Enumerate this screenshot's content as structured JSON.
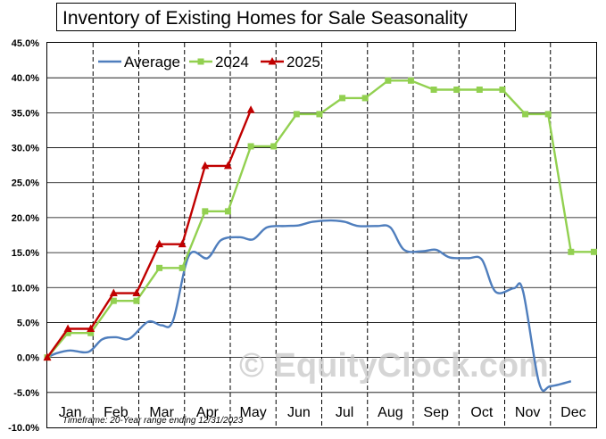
{
  "chart_data": {
    "type": "line",
    "title": "Inventory of Existing Homes for Sale Seasonality",
    "categories": [
      "Jan",
      "Feb",
      "Mar",
      "Apr",
      "May",
      "Jun",
      "Jul",
      "Aug",
      "Sep",
      "Oct",
      "Nov",
      "Dec"
    ],
    "y_ticks": [
      "45.0%",
      "40.0%",
      "35.0%",
      "30.0%",
      "25.0%",
      "20.0%",
      "15.0%",
      "10.0%",
      "5.0%",
      "0.0%",
      "-5.0%",
      "-10.0%"
    ],
    "ylim": [
      -10,
      45
    ],
    "grid": true,
    "legend": "top-left",
    "watermark": "© EquityClock.com",
    "footnote": "Timeframe: 20-Year range ending 12/31/2023",
    "series": [
      {
        "name": "Average",
        "color": "#4f7ebd",
        "marker": "none",
        "points": [
          [
            0,
            0.0
          ],
          [
            0.2,
            0.6
          ],
          [
            0.5,
            1.0
          ],
          [
            0.9,
            0.8
          ],
          [
            1.2,
            2.6
          ],
          [
            1.5,
            2.9
          ],
          [
            1.8,
            2.7
          ],
          [
            2.2,
            5.1
          ],
          [
            2.5,
            4.6
          ],
          [
            2.75,
            5.3
          ],
          [
            3.1,
            14.6
          ],
          [
            3.5,
            14.2
          ],
          [
            3.8,
            16.8
          ],
          [
            4.2,
            17.2
          ],
          [
            4.5,
            16.9
          ],
          [
            4.8,
            18.6
          ],
          [
            5.2,
            18.8
          ],
          [
            5.5,
            18.9
          ],
          [
            5.8,
            19.4
          ],
          [
            6.2,
            19.6
          ],
          [
            6.5,
            19.4
          ],
          [
            6.8,
            18.8
          ],
          [
            7.2,
            18.8
          ],
          [
            7.5,
            18.6
          ],
          [
            7.8,
            15.4
          ],
          [
            8.2,
            15.2
          ],
          [
            8.5,
            15.4
          ],
          [
            8.8,
            14.3
          ],
          [
            9.2,
            14.2
          ],
          [
            9.5,
            14.0
          ],
          [
            9.8,
            9.4
          ],
          [
            10.2,
            9.9
          ],
          [
            10.4,
            9.5
          ],
          [
            10.75,
            -3.6
          ],
          [
            11.0,
            -4.1
          ],
          [
            11.45,
            -3.4
          ]
        ]
      },
      {
        "name": "2024",
        "color": "#92d050",
        "marker": "square",
        "points": [
          [
            0,
            0.0
          ],
          [
            0.45,
            3.5
          ],
          [
            0.95,
            3.5
          ],
          [
            1.45,
            8.1
          ],
          [
            1.95,
            8.1
          ],
          [
            2.45,
            12.8
          ],
          [
            2.95,
            12.8
          ],
          [
            3.45,
            20.9
          ],
          [
            3.95,
            20.9
          ],
          [
            4.45,
            30.2
          ],
          [
            4.95,
            30.2
          ],
          [
            5.45,
            34.8
          ],
          [
            5.95,
            34.8
          ],
          [
            6.45,
            37.1
          ],
          [
            6.95,
            37.1
          ],
          [
            7.45,
            39.6
          ],
          [
            7.95,
            39.6
          ],
          [
            8.45,
            38.3
          ],
          [
            8.95,
            38.3
          ],
          [
            9.45,
            38.3
          ],
          [
            9.95,
            38.3
          ],
          [
            10.45,
            34.8
          ],
          [
            10.95,
            34.8
          ],
          [
            11.45,
            15.1
          ],
          [
            11.95,
            15.1
          ]
        ]
      },
      {
        "name": "2025",
        "color": "#c00000",
        "marker": "triangle",
        "points": [
          [
            0,
            0.0
          ],
          [
            0.45,
            4.1
          ],
          [
            0.95,
            4.1
          ],
          [
            1.45,
            9.2
          ],
          [
            1.95,
            9.2
          ],
          [
            2.45,
            16.2
          ],
          [
            2.95,
            16.2
          ],
          [
            3.45,
            27.4
          ],
          [
            3.95,
            27.4
          ],
          [
            4.45,
            35.4
          ]
        ]
      }
    ]
  }
}
